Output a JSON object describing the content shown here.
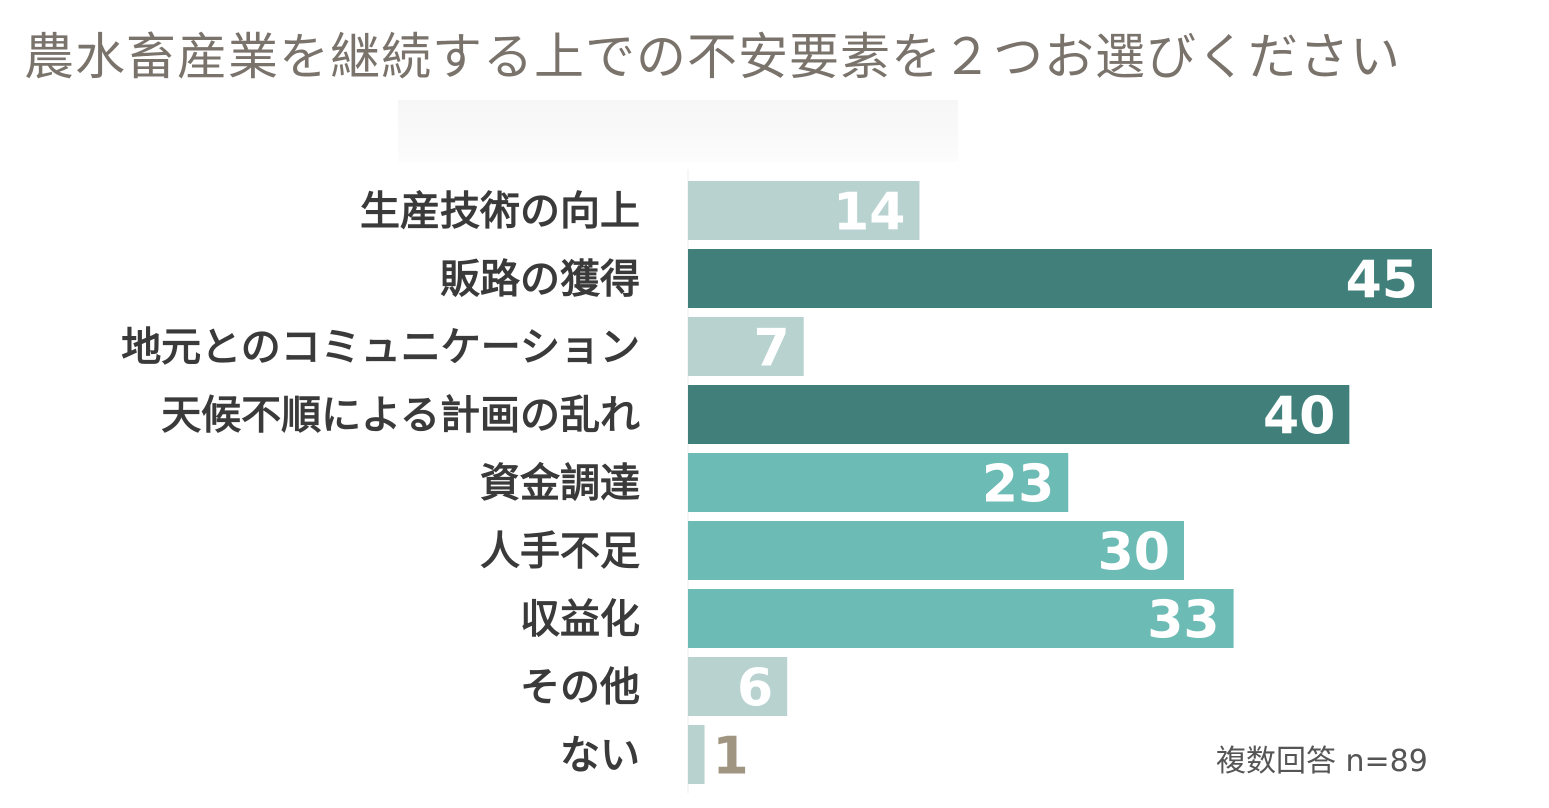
{
  "title": "農水畜産業を継続する上での不安要素を２つお選びください",
  "footnote": "複数回答 n=89",
  "chart_data": {
    "type": "bar",
    "orientation": "horizontal",
    "title": "農水畜産業を継続する上での不安要素を２つお選びください",
    "categories": [
      "生産技術の向上",
      "販路の獲得",
      "地元とのコミュニケーション",
      "天候不順による計画の乱れ",
      "資金調達",
      "人手不足",
      "収益化",
      "その他",
      "ない"
    ],
    "values": [
      14,
      45,
      7,
      40,
      23,
      30,
      33,
      6,
      1
    ],
    "xlim": [
      0,
      50
    ],
    "grid": false,
    "data_labels": true,
    "colors": [
      "#b8d2d0",
      "#417f7b",
      "#b8d2d0",
      "#417f7b",
      "#6cbbb5",
      "#6cbbb5",
      "#6cbbb5",
      "#b8d2d0",
      "#b8d2d0"
    ],
    "label_colors": [
      "#ffffff",
      "#ffffff",
      "#ffffff",
      "#ffffff",
      "#ffffff",
      "#ffffff",
      "#ffffff",
      "#ffffff",
      "#a09581"
    ]
  }
}
